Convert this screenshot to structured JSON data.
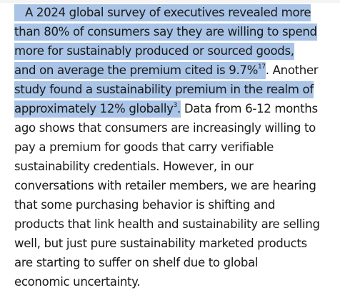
{
  "document": {
    "lines": [
      {
        "pre": "",
        "hl": "A 2024 global survey of executives revealed more",
        "sup": "",
        "post": ""
      },
      {
        "pre": "",
        "hl": "than 80% of consumers say they are willing to spend",
        "sup": "",
        "post": ""
      },
      {
        "pre": "",
        "hl": "more for sustainably produced or sourced goods,",
        "sup": "",
        "post": ""
      },
      {
        "pre": "",
        "hl": "and on average the premium cited is 9.7%",
        "sup": "17",
        "post": ". Another"
      },
      {
        "pre": "",
        "hl": "study found a sustainability premium in the realm of",
        "sup": "",
        "post": ""
      },
      {
        "pre": "",
        "hl": "approximately 12% globally",
        "sup": "3",
        "post": ". Data from 6-12 months"
      },
      {
        "pre": "ago shows that consumers are increasingly willing to",
        "hl": "",
        "sup": "",
        "post": ""
      },
      {
        "pre": "pay a premium for goods that carry verifiable",
        "hl": "",
        "sup": "",
        "post": ""
      },
      {
        "pre": "sustainability credentials. However, in our",
        "hl": "",
        "sup": "",
        "post": ""
      },
      {
        "pre": "conversations with retailer members, we are hearing",
        "hl": "",
        "sup": "",
        "post": ""
      },
      {
        "pre": "that some purchasing behavior is shifting and",
        "hl": "",
        "sup": "",
        "post": ""
      },
      {
        "pre": "products that link health and sustainability are selling",
        "hl": "",
        "sup": "",
        "post": ""
      },
      {
        "pre": "well, but just pure sustainability marketed products",
        "hl": "",
        "sup": "",
        "post": ""
      },
      {
        "pre": "are starting to suffer on shelf due to global",
        "hl": "",
        "sup": "",
        "post": ""
      },
      {
        "pre": "economic uncertainty.",
        "hl": "",
        "sup": "",
        "post": ""
      }
    ]
  },
  "colors": {
    "highlight": "#a9c4e6",
    "text": "#1a1a1a",
    "background": "#ffffff"
  }
}
